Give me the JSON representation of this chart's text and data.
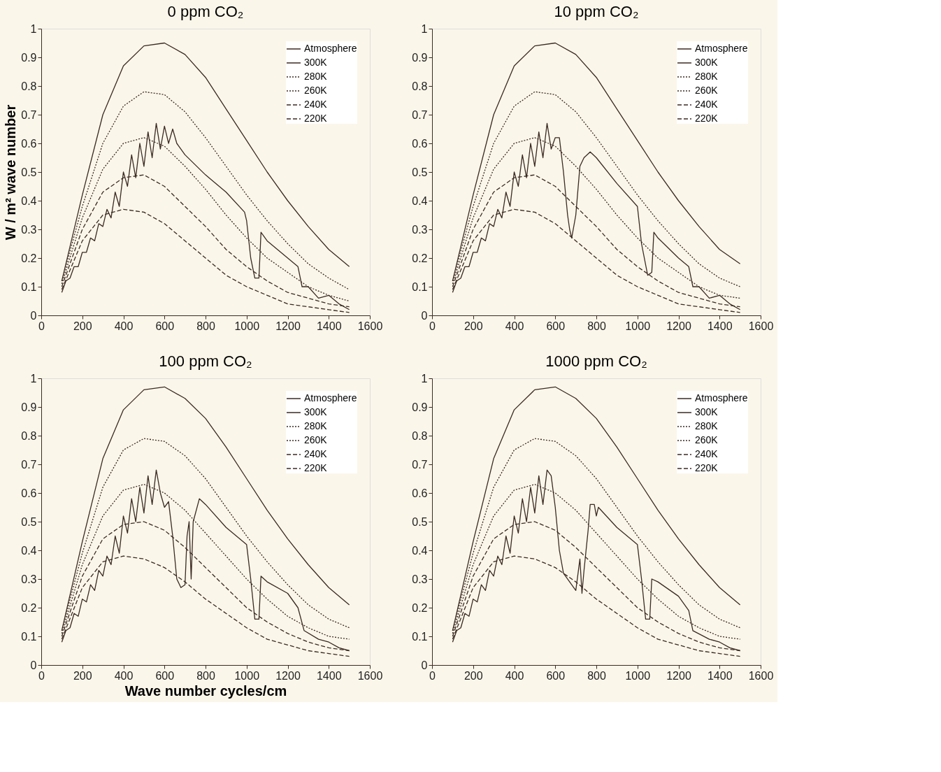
{
  "chart_data": [
    {
      "type": "line",
      "title": "0 ppm CO₂",
      "ylabel": "W / m² wave number",
      "legend": "top right",
      "grid": false,
      "xlim": [
        0,
        1600
      ],
      "ylim": [
        0,
        1
      ],
      "xticks": [
        0,
        200,
        400,
        600,
        800,
        1000,
        1200,
        1400,
        1600
      ],
      "yticks": [
        0,
        0.1,
        0.2,
        0.3,
        0.4,
        0.5,
        0.6,
        0.7,
        0.8,
        0.9,
        1
      ],
      "x": [
        100,
        200,
        300,
        400,
        500,
        600,
        700,
        800,
        900,
        1000,
        1100,
        1200,
        1300,
        1400,
        1500
      ],
      "series": [
        {
          "name": "Atmosphere",
          "color": "#3b2a22",
          "line_style": "solid",
          "x": [
            100,
            120,
            140,
            160,
            180,
            200,
            220,
            240,
            260,
            280,
            300,
            320,
            340,
            360,
            380,
            400,
            420,
            440,
            460,
            480,
            500,
            520,
            540,
            560,
            580,
            600,
            620,
            640,
            660,
            700,
            800,
            900,
            990,
            1000,
            1020,
            1040,
            1060,
            1070,
            1100,
            1150,
            1200,
            1250,
            1270,
            1300,
            1350,
            1400,
            1450,
            1500
          ],
          "values": [
            0.08,
            0.12,
            0.13,
            0.17,
            0.17,
            0.22,
            0.22,
            0.27,
            0.26,
            0.32,
            0.31,
            0.37,
            0.34,
            0.43,
            0.38,
            0.5,
            0.45,
            0.56,
            0.48,
            0.6,
            0.52,
            0.64,
            0.55,
            0.67,
            0.58,
            0.66,
            0.6,
            0.65,
            0.6,
            0.56,
            0.49,
            0.43,
            0.36,
            0.33,
            0.2,
            0.13,
            0.13,
            0.29,
            0.26,
            0.23,
            0.2,
            0.17,
            0.1,
            0.1,
            0.06,
            0.07,
            0.04,
            0.02
          ]
        },
        {
          "name": "300K",
          "color": "#3b2a22",
          "line_style": "solid",
          "values": [
            0.12,
            0.42,
            0.7,
            0.87,
            0.94,
            0.95,
            0.91,
            0.83,
            0.72,
            0.61,
            0.5,
            0.4,
            0.31,
            0.23,
            0.17
          ]
        },
        {
          "name": "280K",
          "color": "#3b2a22",
          "line_style": "dotted",
          "values": [
            0.12,
            0.38,
            0.6,
            0.73,
            0.78,
            0.77,
            0.71,
            0.62,
            0.52,
            0.42,
            0.33,
            0.25,
            0.18,
            0.13,
            0.09
          ]
        },
        {
          "name": "260K",
          "color": "#3b2a22",
          "line_style": "dotted",
          "values": [
            0.11,
            0.34,
            0.51,
            0.6,
            0.62,
            0.59,
            0.52,
            0.44,
            0.35,
            0.27,
            0.2,
            0.15,
            0.1,
            0.07,
            0.05
          ]
        },
        {
          "name": "240K",
          "color": "#3b2a22",
          "line_style": "dashed",
          "values": [
            0.1,
            0.3,
            0.43,
            0.48,
            0.49,
            0.45,
            0.38,
            0.31,
            0.23,
            0.17,
            0.12,
            0.08,
            0.06,
            0.04,
            0.03
          ]
        },
        {
          "name": "220K",
          "color": "#3b2a22",
          "line_style": "dashed",
          "values": [
            0.09,
            0.26,
            0.35,
            0.37,
            0.36,
            0.32,
            0.26,
            0.2,
            0.14,
            0.1,
            0.07,
            0.04,
            0.03,
            0.02,
            0.01
          ]
        }
      ]
    },
    {
      "type": "line",
      "title": "10 ppm CO₂",
      "legend": "top right",
      "grid": false,
      "xlim": [
        0,
        1600
      ],
      "ylim": [
        0,
        1
      ],
      "xticks": [
        0,
        200,
        400,
        600,
        800,
        1000,
        1200,
        1400,
        1600
      ],
      "yticks": [
        0,
        0.1,
        0.2,
        0.3,
        0.4,
        0.5,
        0.6,
        0.7,
        0.8,
        0.9,
        1
      ],
      "x": [
        100,
        200,
        300,
        400,
        500,
        600,
        700,
        800,
        900,
        1000,
        1100,
        1200,
        1300,
        1400,
        1500
      ],
      "series": [
        {
          "name": "Atmosphere",
          "color": "#3b2a22",
          "line_style": "solid",
          "x": [
            100,
            120,
            140,
            160,
            180,
            200,
            220,
            240,
            260,
            280,
            300,
            320,
            340,
            360,
            380,
            400,
            420,
            440,
            460,
            480,
            500,
            520,
            540,
            560,
            580,
            600,
            620,
            640,
            660,
            670,
            680,
            700,
            720,
            740,
            770,
            800,
            900,
            1000,
            1020,
            1050,
            1070,
            1080,
            1100,
            1200,
            1250,
            1270,
            1300,
            1350,
            1400,
            1450,
            1500
          ],
          "values": [
            0.08,
            0.12,
            0.13,
            0.17,
            0.17,
            0.22,
            0.22,
            0.27,
            0.26,
            0.32,
            0.31,
            0.37,
            0.34,
            0.43,
            0.38,
            0.5,
            0.45,
            0.56,
            0.48,
            0.6,
            0.52,
            0.64,
            0.55,
            0.67,
            0.58,
            0.62,
            0.62,
            0.5,
            0.35,
            0.3,
            0.27,
            0.35,
            0.52,
            0.55,
            0.57,
            0.55,
            0.46,
            0.38,
            0.25,
            0.14,
            0.15,
            0.29,
            0.27,
            0.2,
            0.17,
            0.1,
            0.1,
            0.06,
            0.07,
            0.04,
            0.02
          ]
        },
        {
          "name": "300K",
          "color": "#3b2a22",
          "line_style": "solid",
          "values": [
            0.12,
            0.42,
            0.7,
            0.87,
            0.94,
            0.95,
            0.91,
            0.83,
            0.72,
            0.61,
            0.5,
            0.4,
            0.31,
            0.23,
            0.18
          ]
        },
        {
          "name": "280K",
          "color": "#3b2a22",
          "line_style": "dotted",
          "values": [
            0.12,
            0.38,
            0.6,
            0.73,
            0.78,
            0.77,
            0.71,
            0.62,
            0.52,
            0.42,
            0.33,
            0.25,
            0.18,
            0.13,
            0.1
          ]
        },
        {
          "name": "260K",
          "color": "#3b2a22",
          "line_style": "dotted",
          "values": [
            0.11,
            0.34,
            0.51,
            0.6,
            0.62,
            0.59,
            0.52,
            0.44,
            0.35,
            0.27,
            0.2,
            0.15,
            0.1,
            0.07,
            0.06
          ]
        },
        {
          "name": "240K",
          "color": "#3b2a22",
          "line_style": "dashed",
          "values": [
            0.1,
            0.3,
            0.43,
            0.48,
            0.49,
            0.45,
            0.38,
            0.31,
            0.23,
            0.17,
            0.12,
            0.08,
            0.06,
            0.04,
            0.03
          ]
        },
        {
          "name": "220K",
          "color": "#3b2a22",
          "line_style": "dashed",
          "values": [
            0.09,
            0.26,
            0.35,
            0.37,
            0.36,
            0.32,
            0.26,
            0.2,
            0.14,
            0.1,
            0.07,
            0.04,
            0.03,
            0.02,
            0.01
          ]
        }
      ]
    },
    {
      "type": "line",
      "title": "100 ppm CO₂",
      "xlabel": "Wave number cycles/cm",
      "legend": "top right",
      "grid": false,
      "xlim": [
        0,
        1600
      ],
      "ylim": [
        0,
        1
      ],
      "xticks": [
        0,
        200,
        400,
        600,
        800,
        1000,
        1200,
        1400,
        1600
      ],
      "yticks": [
        0,
        0.1,
        0.2,
        0.3,
        0.4,
        0.5,
        0.6,
        0.7,
        0.8,
        0.9,
        1
      ],
      "x": [
        100,
        200,
        300,
        400,
        500,
        600,
        700,
        800,
        900,
        1000,
        1100,
        1200,
        1300,
        1400,
        1500
      ],
      "series": [
        {
          "name": "Atmosphere",
          "color": "#3b2a22",
          "line_style": "solid",
          "x": [
            100,
            120,
            140,
            160,
            180,
            200,
            220,
            240,
            260,
            280,
            300,
            320,
            340,
            360,
            380,
            400,
            420,
            440,
            460,
            480,
            500,
            520,
            540,
            560,
            580,
            600,
            620,
            640,
            660,
            680,
            700,
            710,
            720,
            730,
            740,
            770,
            800,
            900,
            1000,
            1020,
            1040,
            1060,
            1070,
            1100,
            1200,
            1250,
            1280,
            1350,
            1400,
            1450,
            1500
          ],
          "values": [
            0.08,
            0.12,
            0.13,
            0.18,
            0.17,
            0.23,
            0.22,
            0.28,
            0.26,
            0.33,
            0.31,
            0.38,
            0.35,
            0.45,
            0.39,
            0.52,
            0.46,
            0.58,
            0.5,
            0.62,
            0.53,
            0.66,
            0.56,
            0.68,
            0.6,
            0.55,
            0.57,
            0.45,
            0.3,
            0.27,
            0.28,
            0.45,
            0.5,
            0.3,
            0.5,
            0.58,
            0.56,
            0.48,
            0.42,
            0.3,
            0.16,
            0.16,
            0.31,
            0.29,
            0.25,
            0.2,
            0.12,
            0.09,
            0.08,
            0.06,
            0.05
          ]
        },
        {
          "name": "300K",
          "color": "#3b2a22",
          "line_style": "solid",
          "values": [
            0.12,
            0.43,
            0.72,
            0.89,
            0.96,
            0.97,
            0.93,
            0.86,
            0.76,
            0.65,
            0.54,
            0.44,
            0.35,
            0.27,
            0.21
          ]
        },
        {
          "name": "280K",
          "color": "#3b2a22",
          "line_style": "dotted",
          "values": [
            0.12,
            0.39,
            0.62,
            0.75,
            0.79,
            0.78,
            0.73,
            0.65,
            0.55,
            0.45,
            0.36,
            0.28,
            0.21,
            0.16,
            0.13
          ]
        },
        {
          "name": "260K",
          "color": "#3b2a22",
          "line_style": "dotted",
          "values": [
            0.11,
            0.35,
            0.52,
            0.61,
            0.63,
            0.6,
            0.54,
            0.46,
            0.38,
            0.3,
            0.23,
            0.17,
            0.13,
            0.1,
            0.09
          ]
        },
        {
          "name": "240K",
          "color": "#3b2a22",
          "line_style": "dashed",
          "values": [
            0.1,
            0.31,
            0.44,
            0.49,
            0.5,
            0.47,
            0.41,
            0.34,
            0.27,
            0.2,
            0.15,
            0.11,
            0.08,
            0.06,
            0.05
          ]
        },
        {
          "name": "220K",
          "color": "#3b2a22",
          "line_style": "dashed",
          "values": [
            0.09,
            0.27,
            0.36,
            0.38,
            0.37,
            0.34,
            0.29,
            0.23,
            0.18,
            0.13,
            0.09,
            0.07,
            0.05,
            0.04,
            0.03
          ]
        }
      ]
    },
    {
      "type": "line",
      "title": "1000 ppm CO₂",
      "legend": "top right",
      "grid": false,
      "xlim": [
        0,
        1600
      ],
      "ylim": [
        0,
        1
      ],
      "xticks": [
        0,
        200,
        400,
        600,
        800,
        1000,
        1200,
        1400,
        1600
      ],
      "yticks": [
        0,
        0.1,
        0.2,
        0.3,
        0.4,
        0.5,
        0.6,
        0.7,
        0.8,
        0.9,
        1
      ],
      "x": [
        100,
        200,
        300,
        400,
        500,
        600,
        700,
        800,
        900,
        1000,
        1100,
        1200,
        1300,
        1400,
        1500
      ],
      "series": [
        {
          "name": "Atmosphere",
          "color": "#3b2a22",
          "line_style": "solid",
          "x": [
            100,
            120,
            140,
            160,
            180,
            200,
            220,
            240,
            260,
            280,
            300,
            320,
            340,
            360,
            380,
            400,
            420,
            440,
            460,
            480,
            500,
            520,
            540,
            560,
            580,
            600,
            620,
            640,
            700,
            720,
            730,
            740,
            760,
            770,
            790,
            800,
            810,
            900,
            1000,
            1020,
            1040,
            1060,
            1070,
            1100,
            1200,
            1250,
            1270,
            1350,
            1400,
            1450,
            1500
          ],
          "values": [
            0.08,
            0.12,
            0.13,
            0.18,
            0.17,
            0.23,
            0.22,
            0.28,
            0.26,
            0.33,
            0.31,
            0.38,
            0.35,
            0.45,
            0.39,
            0.52,
            0.46,
            0.58,
            0.5,
            0.62,
            0.53,
            0.66,
            0.56,
            0.68,
            0.66,
            0.55,
            0.4,
            0.32,
            0.26,
            0.37,
            0.25,
            0.33,
            0.47,
            0.56,
            0.56,
            0.52,
            0.55,
            0.48,
            0.42,
            0.3,
            0.16,
            0.16,
            0.3,
            0.29,
            0.24,
            0.19,
            0.12,
            0.09,
            0.08,
            0.06,
            0.05
          ]
        },
        {
          "name": "300K",
          "color": "#3b2a22",
          "line_style": "solid",
          "values": [
            0.12,
            0.43,
            0.72,
            0.89,
            0.96,
            0.97,
            0.93,
            0.86,
            0.76,
            0.65,
            0.54,
            0.44,
            0.35,
            0.27,
            0.21
          ]
        },
        {
          "name": "280K",
          "color": "#3b2a22",
          "line_style": "dotted",
          "values": [
            0.12,
            0.39,
            0.62,
            0.75,
            0.79,
            0.78,
            0.73,
            0.65,
            0.55,
            0.45,
            0.36,
            0.28,
            0.21,
            0.16,
            0.13
          ]
        },
        {
          "name": "260K",
          "color": "#3b2a22",
          "line_style": "dotted",
          "values": [
            0.11,
            0.35,
            0.52,
            0.61,
            0.63,
            0.6,
            0.54,
            0.46,
            0.38,
            0.3,
            0.23,
            0.17,
            0.13,
            0.1,
            0.09
          ]
        },
        {
          "name": "240K",
          "color": "#3b2a22",
          "line_style": "dashed",
          "values": [
            0.1,
            0.31,
            0.44,
            0.49,
            0.5,
            0.47,
            0.41,
            0.34,
            0.27,
            0.2,
            0.15,
            0.11,
            0.08,
            0.06,
            0.05
          ]
        },
        {
          "name": "220K",
          "color": "#3b2a22",
          "line_style": "dashed",
          "values": [
            0.09,
            0.27,
            0.36,
            0.38,
            0.37,
            0.34,
            0.29,
            0.23,
            0.18,
            0.13,
            0.09,
            0.07,
            0.05,
            0.04,
            0.03
          ]
        }
      ]
    }
  ]
}
